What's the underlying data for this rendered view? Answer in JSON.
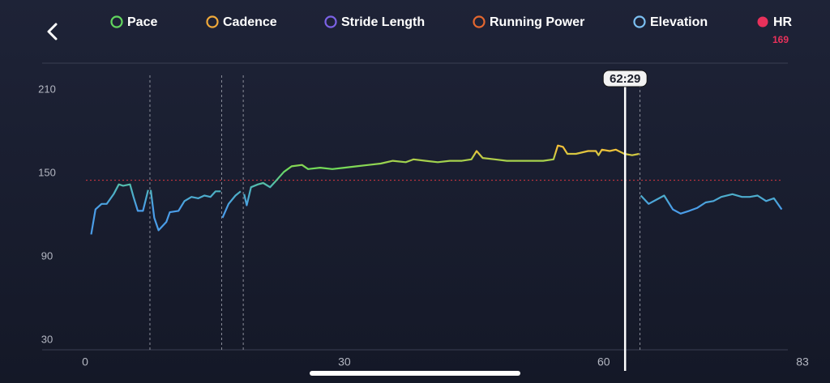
{
  "chart_data": {
    "type": "line",
    "legend": [
      {
        "name": "Pace",
        "color": "#62d65e",
        "filled": false
      },
      {
        "name": "Cadence",
        "color": "#f0a93a",
        "filled": false
      },
      {
        "name": "Stride Length",
        "color": "#7c62e6",
        "filled": false
      },
      {
        "name": "Running Power",
        "color": "#e4672f",
        "filled": false
      },
      {
        "name": "Elevation",
        "color": "#7cc0f2",
        "filled": false
      },
      {
        "name": "HR",
        "color": "#e8315b",
        "filled": true
      }
    ],
    "current_hr": 169,
    "cursor": {
      "value": 62.48,
      "label": "62:29"
    },
    "threshold": 145,
    "threshold_color": "#d9383f",
    "lap_markers": [
      7.5,
      15.8,
      18.3,
      64.2
    ],
    "line_gradient": [
      {
        "value": 125,
        "color": "#4a9de8"
      },
      {
        "value": 140,
        "color": "#4fb8b8"
      },
      {
        "value": 153,
        "color": "#6fdc5a"
      },
      {
        "value": 167,
        "color": "#f2c13a"
      }
    ],
    "xlim": [
      0,
      83
    ],
    "xticks": [
      0,
      30,
      60,
      83
    ],
    "ylim": [
      30,
      210
    ],
    "yticks": [
      30,
      90,
      150,
      210
    ],
    "series": [
      {
        "name": "HR",
        "x": [
          0.7,
          1.2,
          1.9,
          2.5,
          3.3,
          3.9,
          4.4,
          5.2,
          5.6,
          6.1,
          6.7,
          7.3,
          7.5,
          7.6,
          8.0,
          8.5,
          9.4,
          9.8,
          10.8,
          11.5,
          12.3,
          13.1,
          13.8,
          14.5,
          15.1,
          15.7,
          15.8,
          15.9,
          16.6,
          17.4,
          18.0,
          18.3,
          18.4,
          18.7,
          19.2,
          20.0,
          20.6,
          21.4,
          22.0,
          23.0,
          23.9,
          25.1,
          25.8,
          27.2,
          28.6,
          30.0,
          31.4,
          32.8,
          34.2,
          35.6,
          37.1,
          38.0,
          39.4,
          40.8,
          42.2,
          43.6,
          44.7,
          45.3,
          46.0,
          47.4,
          48.8,
          50.2,
          51.6,
          53.0,
          54.2,
          54.7,
          55.3,
          55.8,
          56.8,
          58.2,
          59.1,
          59.4,
          59.8,
          60.7,
          61.4,
          62.4,
          63.3,
          64.1,
          64.2,
          64.3,
          65.2,
          66.1,
          67.0,
          68.0,
          68.9,
          69.9,
          70.8,
          71.8,
          72.7,
          73.6,
          74.9,
          76.0,
          76.9,
          77.8,
          78.8,
          79.7,
          80.6
        ],
        "values": [
          106,
          124,
          128,
          128,
          135,
          142,
          141,
          142,
          133,
          123,
          123,
          138,
          null,
          138,
          118,
          109,
          115,
          122,
          123,
          130,
          133,
          132,
          134,
          133,
          137,
          137,
          null,
          118,
          128,
          134,
          137,
          null,
          135,
          127,
          140,
          142,
          143,
          140,
          144,
          151,
          155,
          156,
          153,
          154,
          153,
          154,
          155,
          156,
          157,
          159,
          158,
          160,
          159,
          158,
          159,
          159,
          160,
          166,
          161,
          160,
          159,
          159,
          159,
          159,
          160,
          170,
          169,
          164,
          164,
          166,
          166,
          163,
          167,
          166,
          167,
          164,
          163,
          164,
          null,
          134,
          128,
          131,
          134,
          124,
          121,
          123,
          125,
          129,
          130,
          133,
          135,
          133,
          133,
          134,
          130,
          132,
          124
        ]
      }
    ]
  }
}
